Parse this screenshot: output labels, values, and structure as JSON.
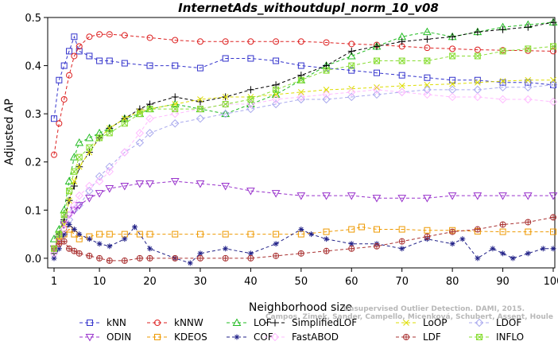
{
  "chart_data": {
    "type": "line",
    "title": "InternetAds_withoutdupl_norm_10_v08",
    "xlabel": "Neighborhood size",
    "ylabel": "Adjusted AP",
    "xlim": [
      1,
      100
    ],
    "ylim": [
      -0.02,
      0.5
    ],
    "xticks": [
      1,
      10,
      20,
      30,
      40,
      50,
      60,
      70,
      80,
      90,
      100
    ],
    "yticks": [
      0.0,
      0.1,
      0.2,
      0.3,
      0.4,
      0.5
    ],
    "xtick_labels": [
      "1",
      "10",
      "20",
      "30",
      "40",
      "50",
      "60",
      "70",
      "80",
      "90",
      "100"
    ],
    "ytick_labels": [
      "0.0",
      "0.1",
      "0.2",
      "0.3",
      "0.4",
      "0.5"
    ],
    "grid": false,
    "legend_position": "bottom",
    "watermark_lines": [
      "Unsupervised Outlier Detection. DAMI, 2015.",
      "Campos, Zimek, Sander, Campello, Micenková, Schubert, Assent, Houle"
    ],
    "series": [
      {
        "name": "kNN",
        "color": "#3333cc",
        "marker": "square",
        "x": [
          1,
          2,
          3,
          4,
          5,
          6,
          8,
          10,
          12,
          15,
          20,
          25,
          30,
          35,
          40,
          45,
          50,
          55,
          60,
          65,
          70,
          75,
          80,
          85,
          90,
          95,
          100
        ],
        "y": [
          0.29,
          0.37,
          0.4,
          0.43,
          0.46,
          0.43,
          0.42,
          0.41,
          0.41,
          0.405,
          0.4,
          0.4,
          0.395,
          0.415,
          0.415,
          0.41,
          0.4,
          0.395,
          0.39,
          0.385,
          0.38,
          0.375,
          0.37,
          0.37,
          0.365,
          0.365,
          0.36
        ]
      },
      {
        "name": "kNNW",
        "color": "#dd2222",
        "marker": "circle",
        "x": [
          1,
          2,
          3,
          4,
          5,
          6,
          8,
          10,
          12,
          15,
          20,
          25,
          30,
          35,
          40,
          45,
          50,
          55,
          60,
          65,
          70,
          75,
          80,
          85,
          90,
          95,
          100
        ],
        "y": [
          0.215,
          0.28,
          0.33,
          0.38,
          0.42,
          0.44,
          0.46,
          0.465,
          0.465,
          0.463,
          0.458,
          0.453,
          0.45,
          0.45,
          0.45,
          0.45,
          0.45,
          0.448,
          0.445,
          0.443,
          0.44,
          0.437,
          0.435,
          0.433,
          0.432,
          0.431,
          0.43
        ]
      },
      {
        "name": "LOF",
        "color": "#22bb22",
        "marker": "triangle-up",
        "x": [
          1,
          2,
          3,
          4,
          5,
          6,
          8,
          10,
          12,
          15,
          18,
          20,
          25,
          30,
          35,
          40,
          45,
          50,
          55,
          60,
          65,
          70,
          75,
          80,
          85,
          90,
          95,
          100
        ],
        "y": [
          0.04,
          0.06,
          0.1,
          0.16,
          0.21,
          0.24,
          0.25,
          0.26,
          0.27,
          0.29,
          0.3,
          0.31,
          0.32,
          0.31,
          0.3,
          0.32,
          0.34,
          0.37,
          0.4,
          0.42,
          0.44,
          0.46,
          0.47,
          0.46,
          0.47,
          0.48,
          0.485,
          0.49
        ]
      },
      {
        "name": "SimplifiedLOF",
        "color": "#000000",
        "marker": "plus",
        "x": [
          1,
          2,
          3,
          4,
          5,
          6,
          8,
          10,
          12,
          15,
          18,
          20,
          25,
          30,
          35,
          40,
          45,
          50,
          55,
          60,
          65,
          70,
          75,
          80,
          85,
          90,
          95,
          100
        ],
        "y": [
          0.01,
          0.05,
          0.08,
          0.12,
          0.15,
          0.19,
          0.22,
          0.25,
          0.27,
          0.29,
          0.31,
          0.32,
          0.335,
          0.325,
          0.335,
          0.35,
          0.36,
          0.38,
          0.4,
          0.43,
          0.44,
          0.45,
          0.455,
          0.46,
          0.47,
          0.475,
          0.48,
          0.49
        ]
      },
      {
        "name": "LoOP",
        "color": "#dddd00",
        "marker": "x",
        "x": [
          1,
          2,
          3,
          4,
          5,
          6,
          8,
          10,
          12,
          15,
          18,
          20,
          25,
          30,
          35,
          40,
          45,
          50,
          55,
          60,
          65,
          70,
          75,
          80,
          85,
          90,
          95,
          100
        ],
        "y": [
          0.02,
          0.04,
          0.07,
          0.12,
          0.16,
          0.19,
          0.22,
          0.25,
          0.27,
          0.29,
          0.305,
          0.31,
          0.32,
          0.33,
          0.335,
          0.335,
          0.34,
          0.345,
          0.35,
          0.352,
          0.355,
          0.358,
          0.36,
          0.362,
          0.365,
          0.368,
          0.37,
          0.37
        ]
      },
      {
        "name": "LDOF",
        "color": "#aaaaee",
        "marker": "diamond",
        "x": [
          1,
          2,
          3,
          4,
          5,
          6,
          8,
          10,
          12,
          15,
          18,
          20,
          25,
          30,
          35,
          40,
          45,
          50,
          55,
          60,
          65,
          70,
          75,
          80,
          85,
          90,
          95,
          100
        ],
        "y": [
          0.01,
          0.03,
          0.05,
          0.08,
          0.1,
          0.11,
          0.14,
          0.17,
          0.19,
          0.22,
          0.24,
          0.26,
          0.28,
          0.29,
          0.3,
          0.31,
          0.32,
          0.33,
          0.33,
          0.335,
          0.34,
          0.345,
          0.35,
          0.35,
          0.35,
          0.355,
          0.355,
          0.36
        ]
      },
      {
        "name": "ODIN",
        "color": "#9933cc",
        "marker": "triangle-down",
        "x": [
          1,
          2,
          3,
          4,
          5,
          6,
          8,
          10,
          12,
          15,
          18,
          20,
          25,
          30,
          35,
          40,
          45,
          50,
          55,
          60,
          65,
          70,
          75,
          80,
          85,
          90,
          95,
          100
        ],
        "y": [
          0.02,
          0.04,
          0.07,
          0.09,
          0.1,
          0.11,
          0.125,
          0.135,
          0.145,
          0.15,
          0.155,
          0.155,
          0.16,
          0.155,
          0.15,
          0.14,
          0.135,
          0.13,
          0.13,
          0.13,
          0.125,
          0.125,
          0.125,
          0.13,
          0.13,
          0.13,
          0.13,
          0.13
        ]
      },
      {
        "name": "KDEOS",
        "color": "#ee9900",
        "marker": "square",
        "x": [
          1,
          2,
          3,
          4,
          5,
          6,
          8,
          10,
          12,
          15,
          18,
          20,
          25,
          30,
          35,
          40,
          45,
          50,
          55,
          60,
          62,
          65,
          70,
          75,
          80,
          85,
          90,
          95,
          100
        ],
        "y": [
          0.02,
          0.035,
          0.05,
          0.06,
          0.05,
          0.04,
          0.045,
          0.05,
          0.05,
          0.05,
          0.05,
          0.05,
          0.05,
          0.05,
          0.05,
          0.05,
          0.05,
          0.05,
          0.055,
          0.06,
          0.065,
          0.06,
          0.06,
          0.058,
          0.058,
          0.056,
          0.055,
          0.055,
          0.055
        ]
      },
      {
        "name": "COF",
        "color": "#222288",
        "marker": "asterisk",
        "x": [
          1,
          2,
          3,
          4,
          5,
          6,
          8,
          10,
          12,
          15,
          17,
          20,
          25,
          28,
          30,
          35,
          40,
          45,
          50,
          52,
          55,
          60,
          65,
          70,
          75,
          80,
          82,
          85,
          88,
          90,
          92,
          95,
          98,
          100
        ],
        "y": [
          0.0,
          0.02,
          0.05,
          0.07,
          0.06,
          0.05,
          0.04,
          0.03,
          0.025,
          0.04,
          0.065,
          0.02,
          0.0,
          -0.01,
          0.01,
          0.02,
          0.01,
          0.03,
          0.06,
          0.05,
          0.04,
          0.03,
          0.03,
          0.02,
          0.04,
          0.03,
          0.04,
          0.0,
          0.02,
          0.01,
          0.0,
          0.01,
          0.02,
          0.02
        ]
      },
      {
        "name": "FastABOD",
        "color": "#ffbbff",
        "marker": "diamond",
        "x": [
          1,
          2,
          3,
          4,
          5,
          6,
          8,
          10,
          12,
          15,
          18,
          20,
          25,
          30,
          35,
          40,
          45,
          50,
          55,
          60,
          65,
          70,
          75,
          80,
          85,
          90,
          95,
          100
        ],
        "y": [
          0.01,
          0.03,
          0.06,
          0.09,
          0.11,
          0.13,
          0.15,
          0.16,
          0.18,
          0.22,
          0.26,
          0.29,
          0.3,
          0.31,
          0.32,
          0.32,
          0.33,
          0.335,
          0.34,
          0.345,
          0.35,
          0.345,
          0.34,
          0.335,
          0.335,
          0.33,
          0.33,
          0.325
        ]
      },
      {
        "name": "LDF",
        "color": "#aa3333",
        "marker": "circle-plus",
        "x": [
          1,
          2,
          3,
          4,
          5,
          6,
          8,
          10,
          12,
          15,
          18,
          20,
          25,
          30,
          35,
          40,
          45,
          50,
          55,
          60,
          65,
          70,
          75,
          80,
          85,
          90,
          95,
          100
        ],
        "y": [
          0.02,
          0.03,
          0.035,
          0.02,
          0.015,
          0.01,
          0.005,
          0.0,
          -0.005,
          -0.005,
          0.0,
          0.0,
          0.0,
          0.0,
          0.0,
          0.0,
          0.005,
          0.01,
          0.015,
          0.02,
          0.025,
          0.035,
          0.045,
          0.055,
          0.06,
          0.07,
          0.075,
          0.085
        ]
      },
      {
        "name": "INFLO",
        "color": "#88dd33",
        "marker": "square-x",
        "x": [
          1,
          2,
          3,
          4,
          5,
          6,
          8,
          10,
          12,
          15,
          18,
          20,
          25,
          30,
          35,
          40,
          45,
          50,
          55,
          60,
          65,
          70,
          75,
          80,
          85,
          90,
          95,
          100
        ],
        "y": [
          0.02,
          0.05,
          0.09,
          0.14,
          0.18,
          0.21,
          0.23,
          0.25,
          0.26,
          0.28,
          0.3,
          0.31,
          0.31,
          0.31,
          0.32,
          0.33,
          0.35,
          0.37,
          0.39,
          0.4,
          0.41,
          0.41,
          0.41,
          0.42,
          0.42,
          0.43,
          0.435,
          0.44
        ]
      }
    ]
  }
}
